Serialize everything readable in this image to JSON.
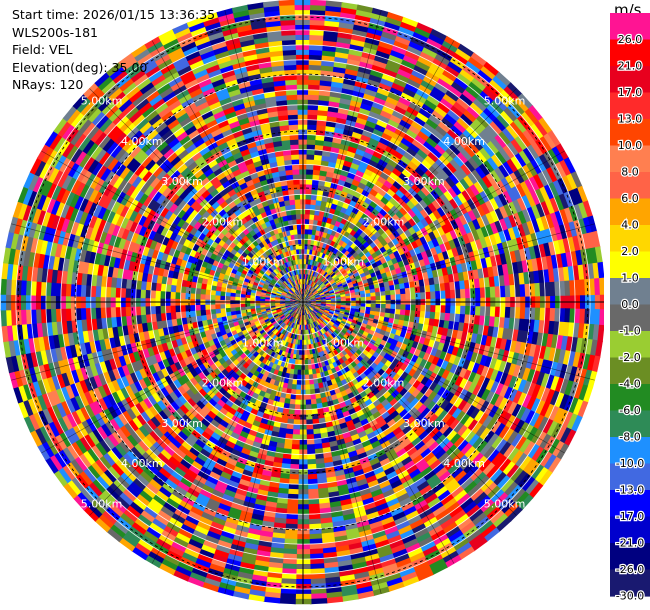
{
  "header": {
    "start_time": "Start time: 2026/01/15 13:36:35",
    "instrument": "WLS200s-181",
    "field": "Field: VEL",
    "elevation": "Elevation(deg): 35.00",
    "nrays": "NRays: 120"
  },
  "chart_data": {
    "type": "heatmap",
    "projection": "polar (PPI)",
    "field": "VEL",
    "n_rays": 120,
    "max_range_km": 5.3,
    "range_ring_labels": [
      "1.00km",
      "2.00km",
      "3.00km",
      "4.00km",
      "5.00km"
    ],
    "range_rings_km": [
      1,
      2,
      3,
      4,
      5
    ],
    "colorbar": {
      "unit": "m/s",
      "tick_labels": [
        "26.0",
        "21.0",
        "17.0",
        "13.0",
        "10.0",
        "8.0",
        "6.0",
        "4.0",
        "2.0",
        "1.0",
        "0.0",
        "-1.0",
        "-2.0",
        "-4.0",
        "-6.0",
        "-8.0",
        "-10.0",
        "-13.0",
        "-17.0",
        "-21.0",
        "-26.0",
        "-30.0"
      ],
      "colors": [
        "#ff1493",
        "#ff0000",
        "#e8001e",
        "#ff2a2a",
        "#ff4500",
        "#ff7f50",
        "#ff6347",
        "#ffa500",
        "#ffd700",
        "#ffff00",
        "#708090",
        "#696969",
        "#9acd32",
        "#6b8e23",
        "#228b22",
        "#2e8b57",
        "#1e90ff",
        "#4169e1",
        "#0000ff",
        "#0000cd",
        "#000080",
        "#191970"
      ]
    }
  }
}
